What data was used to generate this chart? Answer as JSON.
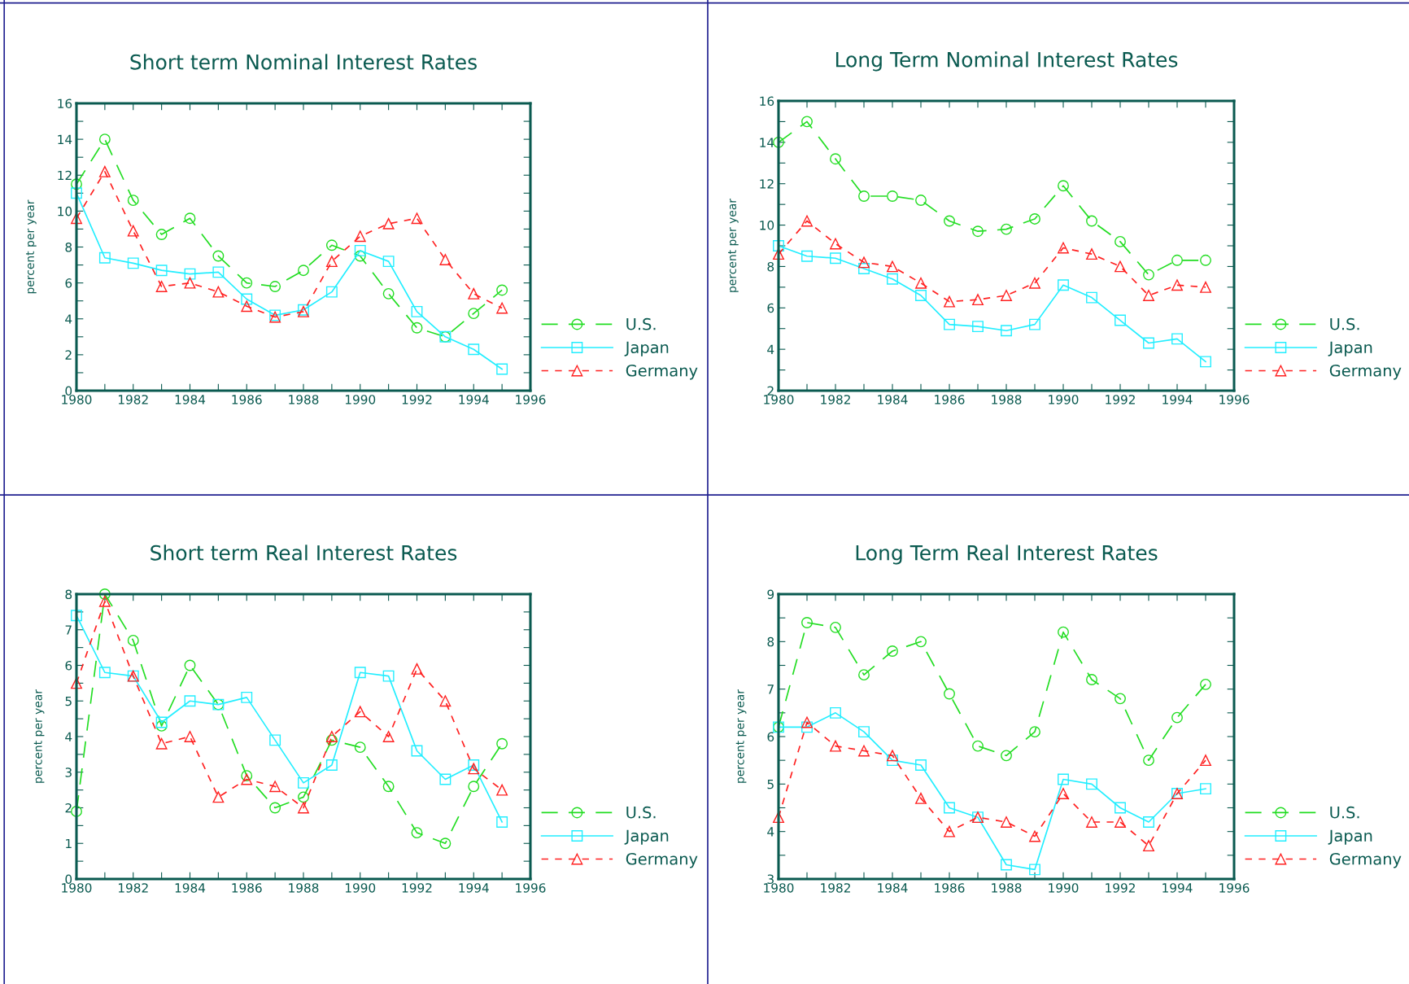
{
  "chart_data": [
    {
      "type": "line",
      "title": "Short term Nominal Interest Rates",
      "ylabel": "percent per year",
      "x": [
        1980,
        1981,
        1982,
        1983,
        1984,
        1985,
        1986,
        1987,
        1988,
        1989,
        1990,
        1991,
        1992,
        1993,
        1994,
        1995
      ],
      "xlim": [
        1980,
        1996
      ],
      "xticks": [
        1980,
        {
          "value": 1981,
          "label": null
        },
        1982,
        {
          "value": 1983,
          "label": null
        },
        1984,
        {
          "value": 1985,
          "label": null
        },
        1986,
        {
          "value": 1987,
          "label": null
        },
        1988,
        {
          "value": 1989,
          "label": null
        },
        1990,
        {
          "value": 1991,
          "label": null
        },
        1992,
        {
          "value": 1993,
          "label": null
        },
        1994,
        {
          "value": 1995,
          "label": null
        },
        1996
      ],
      "ylim": [
        0,
        16
      ],
      "yticks": [
        0,
        {
          "value": 1,
          "label": null
        },
        2,
        {
          "value": 3,
          "label": null
        },
        4,
        {
          "value": 5,
          "label": null
        },
        6,
        {
          "value": 7,
          "label": null
        },
        8,
        {
          "value": 9,
          "label": null
        },
        10,
        {
          "value": 11,
          "label": null
        },
        12,
        {
          "value": 13,
          "label": null
        },
        14,
        {
          "value": 15,
          "label": null
        },
        16
      ],
      "grid": false,
      "legend": "bottom right",
      "series": [
        {
          "name": "U.S.",
          "color": "#22dd22",
          "marker": "circle",
          "line_style": "dashed",
          "values": [
            11.5,
            14.0,
            10.6,
            8.7,
            9.6,
            7.5,
            6.0,
            5.8,
            6.7,
            8.1,
            7.5,
            5.4,
            3.5,
            3.0,
            4.3,
            5.6
          ]
        },
        {
          "name": "Japan",
          "color": "#22eeff",
          "marker": "square",
          "line_style": "solid",
          "values": [
            11.0,
            7.4,
            7.1,
            6.7,
            6.5,
            6.6,
            5.1,
            4.2,
            4.5,
            5.5,
            7.8,
            7.2,
            4.4,
            3.0,
            2.3,
            1.2
          ]
        },
        {
          "name": "Germany",
          "color": "#ff2020",
          "marker": "triangle",
          "line_style": "dotted",
          "values": [
            9.6,
            12.2,
            8.9,
            5.8,
            6.0,
            5.5,
            4.7,
            4.1,
            4.4,
            7.2,
            8.6,
            9.3,
            9.6,
            7.3,
            5.4,
            4.6
          ]
        }
      ]
    },
    {
      "type": "line",
      "title": "Long Term Nominal Interest Rates",
      "ylabel": "percent per year",
      "x": [
        1980,
        1981,
        1982,
        1983,
        1984,
        1985,
        1986,
        1987,
        1988,
        1989,
        1990,
        1991,
        1992,
        1993,
        1994,
        1995
      ],
      "xlim": [
        1980,
        1996
      ],
      "xticks": [
        1980,
        {
          "value": 1981,
          "label": null
        },
        1982,
        {
          "value": 1983,
          "label": null
        },
        1984,
        {
          "value": 1985,
          "label": null
        },
        1986,
        {
          "value": 1987,
          "label": null
        },
        1988,
        {
          "value": 1989,
          "label": null
        },
        1990,
        {
          "value": 1991,
          "label": null
        },
        1992,
        {
          "value": 1993,
          "label": null
        },
        1994,
        {
          "value": 1995,
          "label": null
        },
        1996
      ],
      "ylim": [
        2,
        16
      ],
      "yticks": [
        2,
        {
          "value": 3,
          "label": null
        },
        4,
        {
          "value": 5,
          "label": null
        },
        6,
        {
          "value": 7,
          "label": null
        },
        8,
        {
          "value": 9,
          "label": null
        },
        10,
        {
          "value": 11,
          "label": null
        },
        12,
        {
          "value": 13,
          "label": null
        },
        14,
        {
          "value": 15,
          "label": null
        },
        16
      ],
      "grid": false,
      "legend": "bottom right",
      "series": [
        {
          "name": "U.S.",
          "color": "#22dd22",
          "marker": "circle",
          "line_style": "dashed",
          "values": [
            14.0,
            15.0,
            13.2,
            11.4,
            11.4,
            11.2,
            10.2,
            9.7,
            9.8,
            10.3,
            11.9,
            10.2,
            9.2,
            7.6,
            8.3,
            8.3
          ]
        },
        {
          "name": "Japan",
          "color": "#22eeff",
          "marker": "square",
          "line_style": "solid",
          "values": [
            9.0,
            8.5,
            8.4,
            7.9,
            7.4,
            6.6,
            5.2,
            5.1,
            4.9,
            5.2,
            7.1,
            6.5,
            5.4,
            4.3,
            4.5,
            3.4
          ]
        },
        {
          "name": "Germany",
          "color": "#ff2020",
          "marker": "triangle",
          "line_style": "dotted",
          "values": [
            8.6,
            10.2,
            9.1,
            8.2,
            8.0,
            7.2,
            6.3,
            6.4,
            6.6,
            7.2,
            8.9,
            8.6,
            8.0,
            6.6,
            7.1,
            7.0
          ]
        }
      ]
    },
    {
      "type": "line",
      "title": "Short term Real Interest Rates",
      "ylabel": "percent per year",
      "x": [
        1980,
        1981,
        1982,
        1983,
        1984,
        1985,
        1986,
        1987,
        1988,
        1989,
        1990,
        1991,
        1992,
        1993,
        1994,
        1995
      ],
      "xlim": [
        1980,
        1996
      ],
      "xticks": [
        1980,
        {
          "value": 1981,
          "label": null
        },
        1982,
        {
          "value": 1983,
          "label": null
        },
        1984,
        {
          "value": 1985,
          "label": null
        },
        1986,
        {
          "value": 1987,
          "label": null
        },
        1988,
        {
          "value": 1989,
          "label": null
        },
        1990,
        {
          "value": 1991,
          "label": null
        },
        1992,
        {
          "value": 1993,
          "label": null
        },
        1994,
        {
          "value": 1995,
          "label": null
        },
        1996
      ],
      "ylim": [
        0,
        8
      ],
      "yticks": [
        0,
        {
          "value": 0.5,
          "label": null
        },
        1,
        {
          "value": 1.5,
          "label": null
        },
        2,
        {
          "value": 2.5,
          "label": null
        },
        3,
        {
          "value": 3.5,
          "label": null
        },
        4,
        {
          "value": 4.5,
          "label": null
        },
        5,
        {
          "value": 5.5,
          "label": null
        },
        6,
        {
          "value": 6.5,
          "label": null
        },
        7,
        {
          "value": 7.5,
          "label": null
        },
        8
      ],
      "grid": false,
      "legend": "bottom right",
      "series": [
        {
          "name": "U.S.",
          "color": "#22dd22",
          "marker": "circle",
          "line_style": "dashed",
          "values": [
            1.9,
            8.0,
            6.7,
            4.3,
            6.0,
            4.9,
            2.9,
            2.0,
            2.3,
            3.9,
            3.7,
            2.6,
            1.3,
            1.0,
            2.6,
            3.8
          ]
        },
        {
          "name": "Japan",
          "color": "#22eeff",
          "marker": "square",
          "line_style": "solid",
          "values": [
            7.4,
            5.8,
            5.7,
            4.4,
            5.0,
            4.9,
            5.1,
            3.9,
            2.7,
            3.2,
            5.8,
            5.7,
            3.6,
            2.8,
            3.2,
            1.6
          ]
        },
        {
          "name": "Germany",
          "color": "#ff2020",
          "marker": "triangle",
          "line_style": "dotted",
          "values": [
            5.5,
            7.8,
            5.7,
            3.8,
            4.0,
            2.3,
            2.8,
            2.6,
            2.0,
            4.0,
            4.7,
            4.0,
            5.9,
            5.0,
            3.1,
            2.5
          ]
        }
      ]
    },
    {
      "type": "line",
      "title": "Long Term Real Interest Rates",
      "ylabel": "percent per year",
      "x": [
        1980,
        1981,
        1982,
        1983,
        1984,
        1985,
        1986,
        1987,
        1988,
        1989,
        1990,
        1991,
        1992,
        1993,
        1994,
        1995
      ],
      "xlim": [
        1980,
        1996
      ],
      "xticks": [
        1980,
        {
          "value": 1981,
          "label": null
        },
        1982,
        {
          "value": 1983,
          "label": null
        },
        1984,
        {
          "value": 1985,
          "label": null
        },
        1986,
        {
          "value": 1987,
          "label": null
        },
        1988,
        {
          "value": 1989,
          "label": null
        },
        1990,
        {
          "value": 1991,
          "label": null
        },
        1992,
        {
          "value": 1993,
          "label": null
        },
        1994,
        {
          "value": 1995,
          "label": null
        },
        1996
      ],
      "ylim": [
        3,
        9
      ],
      "yticks": [
        3,
        {
          "value": 3.5,
          "label": null
        },
        4,
        {
          "value": 4.5,
          "label": null
        },
        5,
        {
          "value": 5.5,
          "label": null
        },
        6,
        {
          "value": 6.5,
          "label": null
        },
        7,
        {
          "value": 7.5,
          "label": null
        },
        8,
        {
          "value": 8.5,
          "label": null
        },
        9
      ],
      "grid": false,
      "legend": "bottom right",
      "series": [
        {
          "name": "U.S.",
          "color": "#22dd22",
          "marker": "circle",
          "line_style": "dashed",
          "values": [
            6.2,
            8.4,
            8.3,
            7.3,
            7.8,
            8.0,
            6.9,
            5.8,
            5.6,
            6.1,
            8.2,
            7.2,
            6.8,
            5.5,
            6.4,
            7.1
          ]
        },
        {
          "name": "Japan",
          "color": "#22eeff",
          "marker": "square",
          "line_style": "solid",
          "values": [
            6.2,
            6.2,
            6.5,
            6.1,
            5.5,
            5.4,
            4.5,
            4.3,
            3.3,
            3.2,
            5.1,
            5.0,
            4.5,
            4.2,
            4.8,
            4.9
          ]
        },
        {
          "name": "Germany",
          "color": "#ff2020",
          "marker": "triangle",
          "line_style": "dotted",
          "values": [
            4.3,
            6.3,
            5.8,
            5.7,
            5.6,
            4.7,
            4.0,
            4.3,
            4.2,
            3.9,
            4.8,
            4.2,
            4.2,
            3.7,
            4.8,
            5.5
          ]
        }
      ]
    }
  ]
}
